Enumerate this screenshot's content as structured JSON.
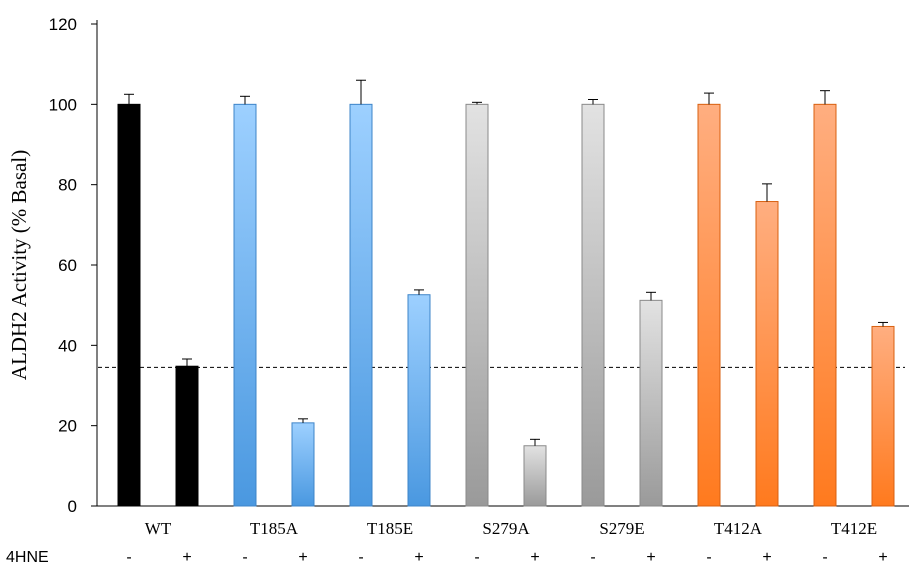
{
  "chart_data": {
    "type": "bar",
    "title": "",
    "xlabel": "",
    "ylabel": "ALDH2 Activity (% Basal)",
    "ylim": [
      0,
      120
    ],
    "yticks": [
      0,
      20,
      40,
      60,
      80,
      100,
      120
    ],
    "treatment_label": "4HNE",
    "treatment_signs": [
      "-",
      "+"
    ],
    "reference_line": 34.5,
    "groups": [
      {
        "label": "WT",
        "color": "#000000",
        "values": [
          100,
          34.8
        ],
        "errors": [
          2.5,
          1.8
        ]
      },
      {
        "label": "T185A",
        "color": "#6fb3ee",
        "values": [
          100,
          20.7
        ],
        "errors": [
          2.0,
          1.0
        ]
      },
      {
        "label": "T185E",
        "color": "#6fb3ee",
        "values": [
          100,
          52.6
        ],
        "errors": [
          6.0,
          1.2
        ]
      },
      {
        "label": "S279A",
        "color": "#c4c4c4",
        "values": [
          100,
          15.0
        ],
        "errors": [
          0.5,
          1.6
        ]
      },
      {
        "label": "S279E",
        "color": "#c4c4c4",
        "values": [
          100,
          51.2
        ],
        "errors": [
          1.2,
          2.0
        ]
      },
      {
        "label": "T412A",
        "color": "#ff8c40",
        "values": [
          100,
          75.8
        ],
        "errors": [
          2.8,
          4.4
        ]
      },
      {
        "label": "T412E",
        "color": "#ff8c40",
        "values": [
          100,
          44.7
        ],
        "errors": [
          3.4,
          1.0
        ]
      }
    ]
  }
}
